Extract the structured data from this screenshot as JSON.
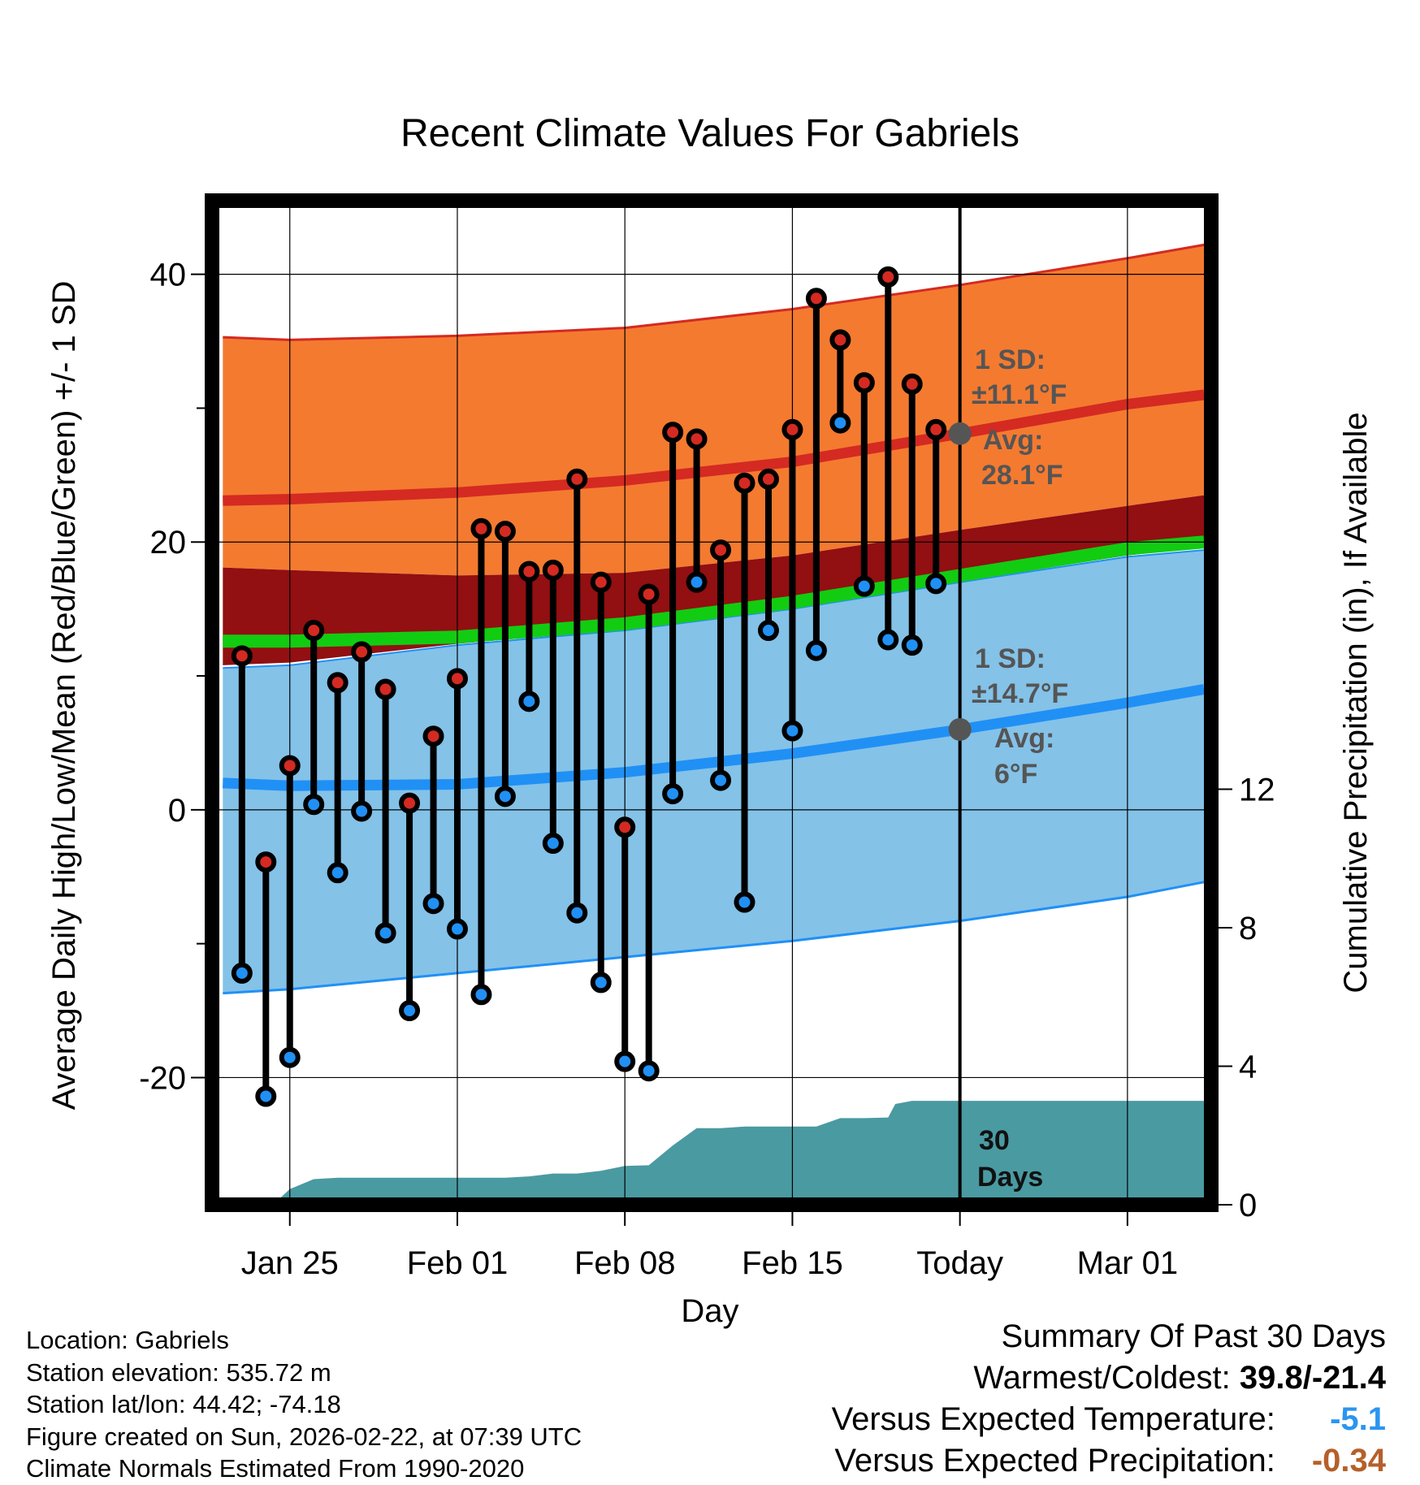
{
  "chart_data": {
    "type": "line",
    "title": "Recent Climate Values For Gabriels",
    "xlabel": "Day",
    "ylabel": "Average Daily High/Low/Mean (Red/Blue/Green) +/- 1 SD",
    "y2label": "Cumulative Precipitation (in), If Available",
    "xlim": [
      -3.25,
      38.5
    ],
    "ylim": [
      -29.5,
      45.5
    ],
    "y2lim": [
      0,
      29.0
    ],
    "x_ticks": [
      {
        "x": 0,
        "label": "Jan 25"
      },
      {
        "x": 7,
        "label": "Feb 01"
      },
      {
        "x": 14,
        "label": "Feb 08"
      },
      {
        "x": 21,
        "label": "Feb 15"
      },
      {
        "x": 28,
        "label": "Today"
      },
      {
        "x": 35,
        "label": "Mar 01"
      }
    ],
    "y_ticks": [
      -20,
      0,
      20,
      40
    ],
    "y_minor_ticks": [
      -10,
      10,
      30
    ],
    "y2_ticks": [
      0,
      4,
      8,
      12
    ],
    "today_x": 28,
    "colors": {
      "high_band": "#f47a30",
      "high_edge": "#d42a22",
      "mean_band": "#920f12",
      "mean_line": "#12cc12",
      "low_band": "#84c2e8",
      "low_edge": "#2090f5",
      "precip": "#4a9aa2",
      "high_dot": "#d42a22",
      "low_dot": "#2090f5",
      "annotation": "#555555"
    },
    "normal_high": {
      "x": [
        -2.8,
        0,
        7,
        14,
        21,
        28,
        35,
        38.2
      ],
      "avg": [
        23.1,
        23.2,
        23.7,
        24.6,
        26.0,
        28.1,
        30.3,
        31.0
      ],
      "upper": [
        35.3,
        35.1,
        35.4,
        36.0,
        37.4,
        39.2,
        41.2,
        42.2
      ],
      "lower": [
        18.1,
        17.9,
        17.5,
        17.7,
        19.0,
        20.9,
        22.7,
        23.5
      ]
    },
    "normal_mean": {
      "x": [
        -2.8,
        0,
        7,
        14,
        21,
        28,
        35,
        38.2
      ],
      "avg": [
        12.6,
        12.6,
        12.9,
        13.9,
        15.5,
        17.5,
        19.5,
        20.0
      ],
      "lower": [
        10.8,
        11.0,
        12.4,
        13.5,
        15.1,
        17.1,
        19.0,
        19.6
      ]
    },
    "normal_low": {
      "x": [
        -2.8,
        0,
        7,
        14,
        21,
        28,
        35,
        38.2
      ],
      "avg": [
        2.0,
        1.8,
        1.9,
        2.8,
        4.2,
        6.0,
        8.0,
        9.0
      ],
      "upper": [
        10.6,
        10.8,
        12.3,
        13.4,
        15.0,
        17.0,
        18.9,
        19.4
      ],
      "lower": [
        -13.7,
        -13.4,
        -12.2,
        -11.0,
        -9.8,
        -8.3,
        -6.5,
        -5.4
      ]
    },
    "days": [
      {
        "x": -2,
        "high": 11.5,
        "low": -12.2
      },
      {
        "x": -1,
        "high": -3.9,
        "low": -21.4
      },
      {
        "x": 0,
        "high": 3.3,
        "low": -18.5
      },
      {
        "x": 1,
        "high": 13.4,
        "low": 0.4
      },
      {
        "x": 2,
        "high": 9.5,
        "low": -4.7
      },
      {
        "x": 3,
        "high": 11.8,
        "low": -0.1
      },
      {
        "x": 4,
        "high": 9.0,
        "low": -9.2
      },
      {
        "x": 5,
        "high": 0.5,
        "low": -15.0
      },
      {
        "x": 6,
        "high": 5.5,
        "low": -7.0
      },
      {
        "x": 7,
        "high": 9.8,
        "low": -8.9
      },
      {
        "x": 8,
        "high": 21.0,
        "low": -13.8
      },
      {
        "x": 9,
        "high": 20.8,
        "low": 1.0
      },
      {
        "x": 10,
        "high": 17.8,
        "low": 8.1
      },
      {
        "x": 11,
        "high": 17.9,
        "low": -2.5
      },
      {
        "x": 12,
        "high": 24.7,
        "low": -7.7
      },
      {
        "x": 13,
        "high": 17.0,
        "low": -12.9
      },
      {
        "x": 14,
        "high": -1.3,
        "low": -18.8
      },
      {
        "x": 15,
        "high": 16.1,
        "low": -19.5
      },
      {
        "x": 16,
        "high": 28.2,
        "low": 1.2
      },
      {
        "x": 17,
        "high": 27.7,
        "low": 17.0
      },
      {
        "x": 18,
        "high": 19.4,
        "low": 2.2
      },
      {
        "x": 19,
        "high": 24.4,
        "low": -6.9
      },
      {
        "x": 20,
        "high": 24.7,
        "low": 13.4
      },
      {
        "x": 21,
        "high": 28.4,
        "low": 5.9
      },
      {
        "x": 22,
        "high": 38.2,
        "low": 11.9
      },
      {
        "x": 23,
        "high": 35.1,
        "low": 28.9
      },
      {
        "x": 24,
        "high": 31.9,
        "low": 16.7
      },
      {
        "x": 25,
        "high": 39.8,
        "low": 12.7
      },
      {
        "x": 26,
        "high": 31.8,
        "low": 12.3
      },
      {
        "x": 27,
        "high": 28.4,
        "low": 16.9
      }
    ],
    "precipitation": {
      "x": [
        -0.7,
        0,
        1,
        2,
        3,
        4,
        5,
        6,
        7,
        8,
        9,
        10,
        11,
        12,
        13,
        14,
        15,
        16,
        17,
        18,
        19,
        20,
        21,
        22,
        23,
        24,
        25,
        25.3,
        26,
        27,
        28,
        38.2
      ],
      "cum": [
        0.0,
        0.45,
        0.74,
        0.78,
        0.78,
        0.78,
        0.78,
        0.78,
        0.78,
        0.78,
        0.78,
        0.82,
        0.9,
        0.9,
        0.98,
        1.12,
        1.14,
        1.71,
        2.21,
        2.21,
        2.26,
        2.26,
        2.26,
        2.26,
        2.5,
        2.5,
        2.52,
        2.91,
        3.0,
        3.0,
        3.0,
        3.0
      ]
    },
    "annotations": {
      "high_sd_label": "1 SD:",
      "high_sd_value": "±11.1°F",
      "high_avg_label": "Avg:",
      "high_avg_value": "28.1°F",
      "high_avg_marker": 28.1,
      "low_sd_label": "1 SD:",
      "low_sd_value": "±14.7°F",
      "low_avg_label": "Avg:",
      "low_avg_value": "6°F",
      "low_avg_marker": 6.0,
      "days_number": "30",
      "days_word": "Days"
    }
  },
  "info": {
    "location": "Location: Gabriels",
    "elevation": "Station elevation: 535.72 m",
    "latlon": "Station lat/lon: 44.42; -74.18",
    "created": "Figure created on Sun, 2026-02-22, at 07:39 UTC",
    "normals": "Climate Normals Estimated From 1990-2020"
  },
  "summary": {
    "title": "Summary Of Past 30 Days",
    "warm_cold_label": "Warmest/Coldest:",
    "warm_cold_value": "39.8/-21.4",
    "temp_label": "Versus Expected Temperature:",
    "temp_value": "-5.1",
    "temp_color": "#2b95f0",
    "precip_label": "Versus Expected Precipitation:",
    "precip_value": "-0.34",
    "precip_color": "#b5602a"
  }
}
